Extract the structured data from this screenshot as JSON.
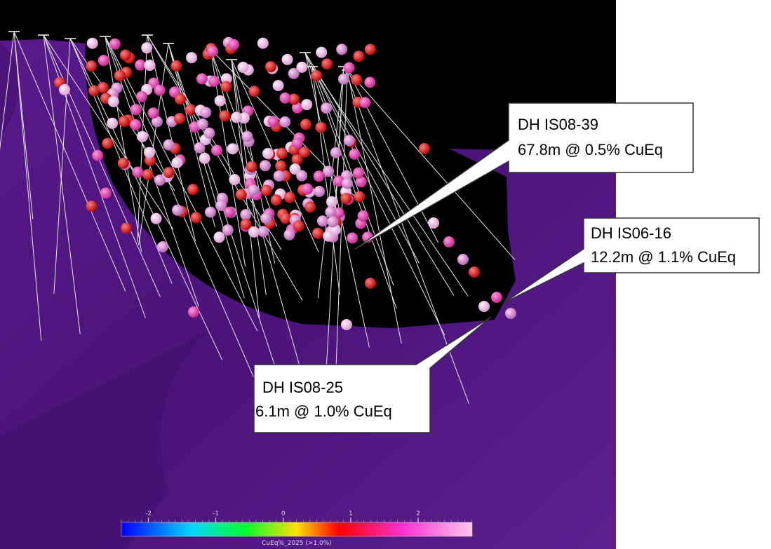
{
  "callouts": [
    {
      "title": "DH IS08-39",
      "detail": "67.8m @ 0.5% CuEq"
    },
    {
      "title": "DH IS06-16",
      "detail": "12.2m @ 1.1% CuEq"
    },
    {
      "title": "DH IS08-25",
      "detail": "6.1m @ 1.0% CuEq"
    }
  ],
  "colorbar": {
    "title": "CuEq%_2025 (>1.0%)",
    "range": [
      -2.4,
      2.8
    ],
    "ticks": [
      -2,
      -1,
      0,
      1,
      2
    ]
  }
}
